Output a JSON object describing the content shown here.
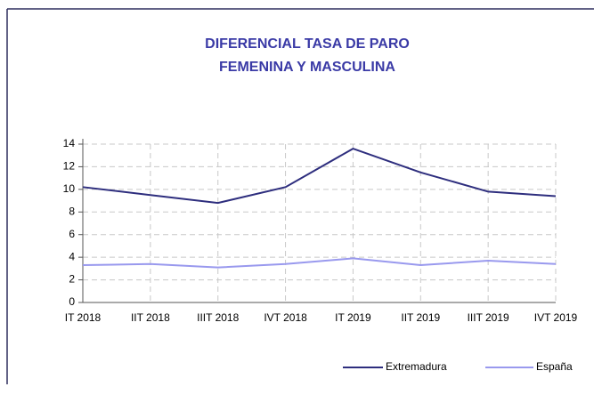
{
  "chart_data": {
    "type": "line",
    "title": [
      "DIFERENCIAL TASA DE PARO",
      "FEMENINA Y MASCULINA"
    ],
    "categories": [
      "IT 2018",
      "IIT 2018",
      "IIIT 2018",
      "IVT 2018",
      "IT 2019",
      "IIT 2019",
      "IIIT 2019",
      "IVT 2019"
    ],
    "series": [
      {
        "name": "Extremadura",
        "color": "#2e2e7e",
        "values": [
          10.2,
          9.5,
          8.8,
          10.2,
          13.6,
          11.5,
          9.8,
          9.4
        ]
      },
      {
        "name": "España",
        "color": "#9999ee",
        "values": [
          3.3,
          3.4,
          3.1,
          3.4,
          3.9,
          3.3,
          3.7,
          3.4
        ]
      }
    ],
    "ylim": [
      0,
      14
    ],
    "yticks": [
      0,
      2,
      4,
      6,
      8,
      10,
      12,
      14
    ],
    "grid": true,
    "legend": "bottom-right"
  }
}
